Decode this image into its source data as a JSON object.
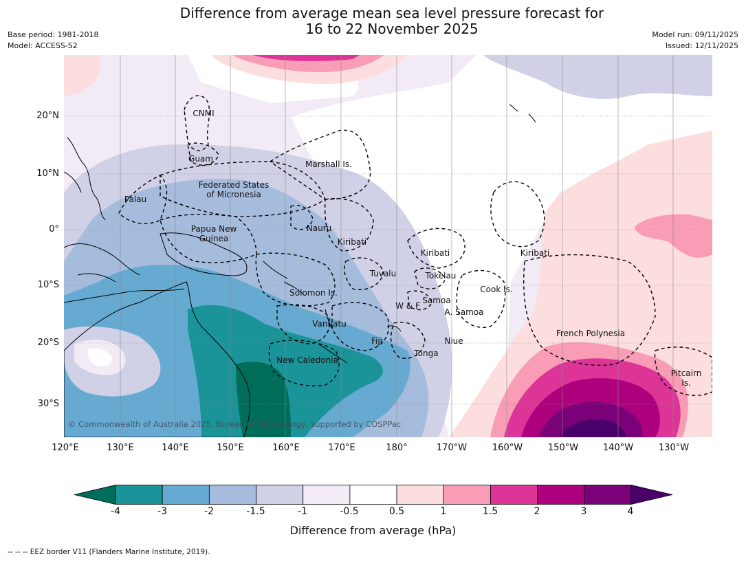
{
  "title": {
    "line1": "Difference from average mean sea level pressure forecast for",
    "line2": "16 to 22 November 2025"
  },
  "meta": {
    "base_period": "Base period: 1981-2018",
    "model": "Model: ACCESS-S2",
    "model_run": "Model run: 09/11/2025",
    "issued": "Issued: 12/11/2025"
  },
  "axes": {
    "lat_labels": [
      "20°N",
      "10°N",
      "0°",
      "10°S",
      "20°S",
      "30°S"
    ],
    "lon_labels": [
      "120°E",
      "130°E",
      "140°E",
      "150°E",
      "160°E",
      "170°E",
      "180°",
      "170°W",
      "160°W",
      "150°W",
      "140°W",
      "130°W"
    ]
  },
  "places": {
    "cnmi": "CNMI",
    "guam": "Guam",
    "marshall": "Marshall Is.",
    "fsm_line1": "Federated States",
    "fsm_line2": "of Micronesia",
    "palau": "Palau",
    "png_line1": "Papua New",
    "png_line2": "Guinea",
    "nauru": "Nauru",
    "kiribati_west": "Kiribati",
    "kiribati_central": "Kiribati",
    "kiribati_east": "Kiribati",
    "tuvalu": "Tuvalu",
    "tokelau": "Tokelau",
    "cook": "Cook Is.",
    "solomon": "Solomon Is.",
    "wf": "W & F",
    "samoa": "Samoa",
    "asamoa": "A. Samoa",
    "vanuatu": "Vanuatu",
    "fiji": "Fiji",
    "niue": "Niue",
    "tonga": "Tonga",
    "french_polynesia": "French Polynesia",
    "pitcairn_line1": "Pitcairn",
    "pitcairn_line2": "Is.",
    "new_caledonia": "New Caledonia"
  },
  "copyright": "© Commonwealth of Australia 2025, Bureau of Meteorology, supported by COSPPac",
  "colorbar": {
    "title": "Difference from average (hPa)",
    "tick_labels": [
      "-4",
      "-3",
      "-2",
      "-1.5",
      "-1",
      "-0.5",
      "0.5",
      "1",
      "1.5",
      "2",
      "3",
      "4"
    ],
    "colors": {
      "below_min": "#006d5b",
      "bins": [
        "#1a9399",
        "#66aad2",
        "#a6bcdc",
        "#d0d1e6",
        "#f2ebf5",
        "#ffffff",
        "#fddede",
        "#f99cb6",
        "#dd3497",
        "#ae017e",
        "#7a0177"
      ],
      "above_max": "#49006a"
    }
  },
  "footnote": "--  --  -- EEZ border V11 (Flanders Marine Institute, 2019)."
}
